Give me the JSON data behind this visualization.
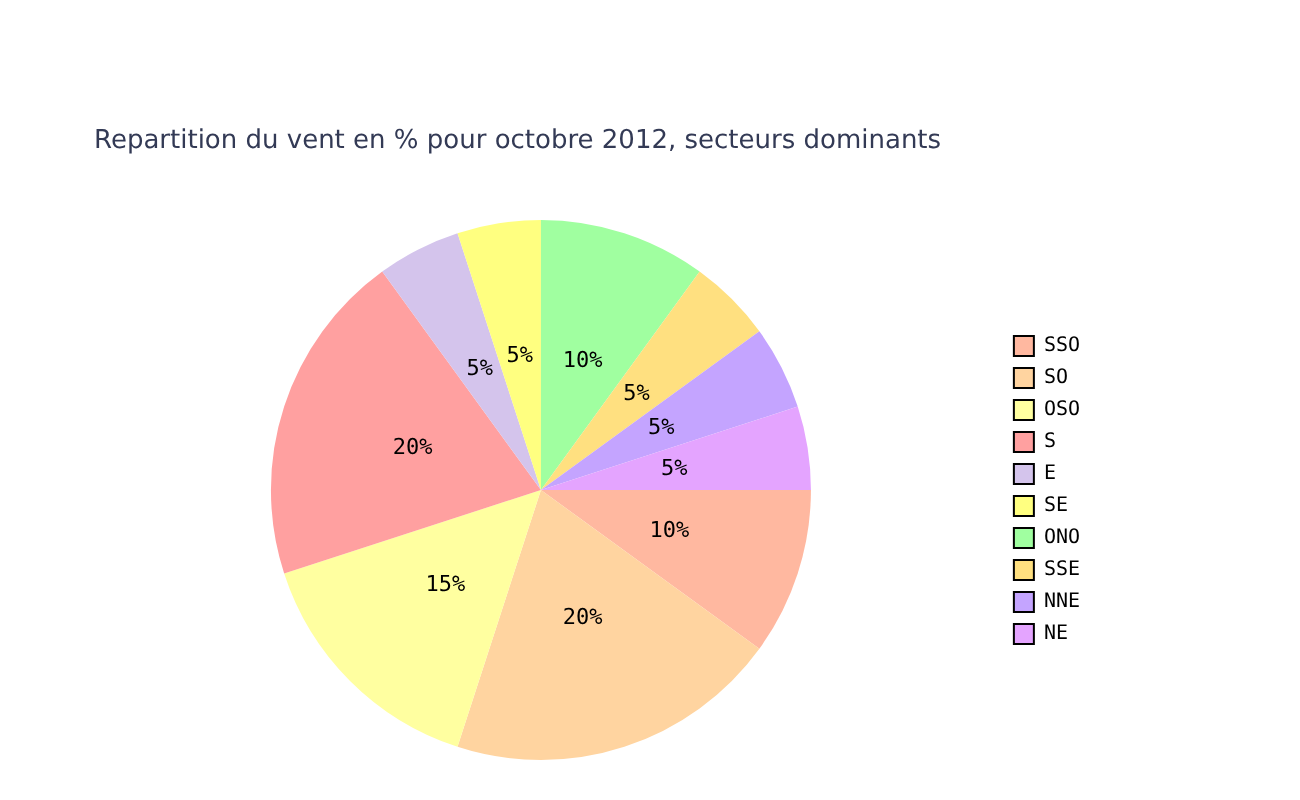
{
  "chart_data": {
    "type": "pie",
    "title": "Repartition du vent en % pour octobre 2012, secteurs dominants",
    "categories": [
      "SSO",
      "SO",
      "OSO",
      "S",
      "E",
      "SE",
      "ONO",
      "SSE",
      "NNE",
      "NE"
    ],
    "values": [
      10,
      20,
      15,
      20,
      5,
      5,
      10,
      5,
      5,
      5
    ],
    "value_labels": [
      "10%",
      "20%",
      "15%",
      "20%",
      "5%",
      "5%",
      "10%",
      "5%",
      "5%",
      "5%"
    ],
    "colors": [
      "#ffb8a0",
      "#ffd4a0",
      "#ffffa0",
      "#ffa0a0",
      "#d4c4ec",
      "#ffff80",
      "#a0ffa0",
      "#ffe080",
      "#c4a4ff",
      "#e4a4ff"
    ],
    "legend": "right"
  }
}
